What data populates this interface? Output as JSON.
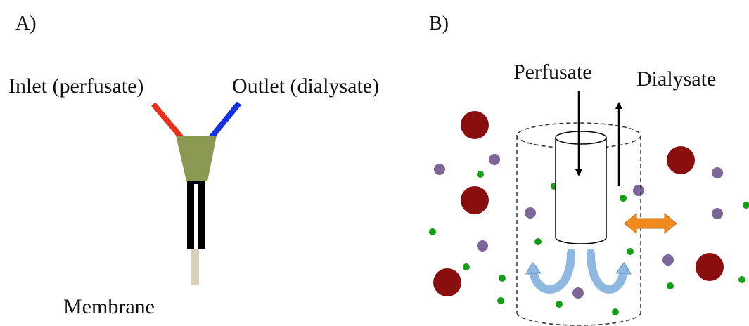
{
  "panels": [
    {
      "label": "A)",
      "texts": {
        "inlet": "Inlet (perfusate)",
        "outlet": "Outlet (dialysate)",
        "membrane": "Membrane"
      }
    },
    {
      "label": "B)",
      "texts": {
        "perfusate": "Perfusate",
        "dialysate": "Dialysate"
      }
    }
  ]
}
